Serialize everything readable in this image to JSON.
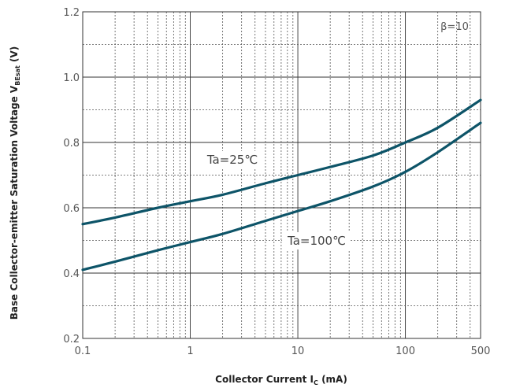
{
  "chart_data": {
    "type": "line",
    "x_scale": "log",
    "xlim": [
      0.1,
      500
    ],
    "ylim": [
      0.2,
      1.2
    ],
    "x_ticks": [
      {
        "value": 0.1,
        "label": "0.1"
      },
      {
        "value": 1,
        "label": "1"
      },
      {
        "value": 10,
        "label": "10"
      },
      {
        "value": 100,
        "label": "100"
      },
      {
        "value": 500,
        "label": "500"
      }
    ],
    "y_ticks": [
      {
        "value": 0.2,
        "label": "0.2"
      },
      {
        "value": 0.4,
        "label": "0.4"
      },
      {
        "value": 0.6,
        "label": "0.6"
      },
      {
        "value": 0.8,
        "label": "0.8"
      },
      {
        "value": 1.0,
        "label": "1.0"
      },
      {
        "value": 1.2,
        "label": "1.2"
      }
    ],
    "grid": true,
    "ylabel": {
      "main": "Base Collector-emitter Saturation Voltage  V",
      "sub": "BEsat",
      "unit": " (V)"
    },
    "xlabel": {
      "main": "Collector Current  I",
      "sub": "C",
      "unit": " (mA)"
    },
    "annotation": "β=10",
    "series": [
      {
        "name": "Ta=25℃",
        "color": "#0d5468",
        "x": [
          0.1,
          0.2,
          0.5,
          1,
          2,
          5,
          10,
          20,
          50,
          100,
          200,
          500
        ],
        "y": [
          0.55,
          0.57,
          0.6,
          0.62,
          0.64,
          0.675,
          0.7,
          0.725,
          0.76,
          0.8,
          0.845,
          0.93
        ]
      },
      {
        "name": "Ta=100℃",
        "color": "#0d5468",
        "x": [
          0.1,
          0.2,
          0.5,
          1,
          2,
          5,
          10,
          20,
          50,
          100,
          200,
          500
        ],
        "y": [
          0.41,
          0.435,
          0.47,
          0.495,
          0.52,
          0.56,
          0.59,
          0.62,
          0.665,
          0.71,
          0.77,
          0.86
        ]
      }
    ]
  }
}
